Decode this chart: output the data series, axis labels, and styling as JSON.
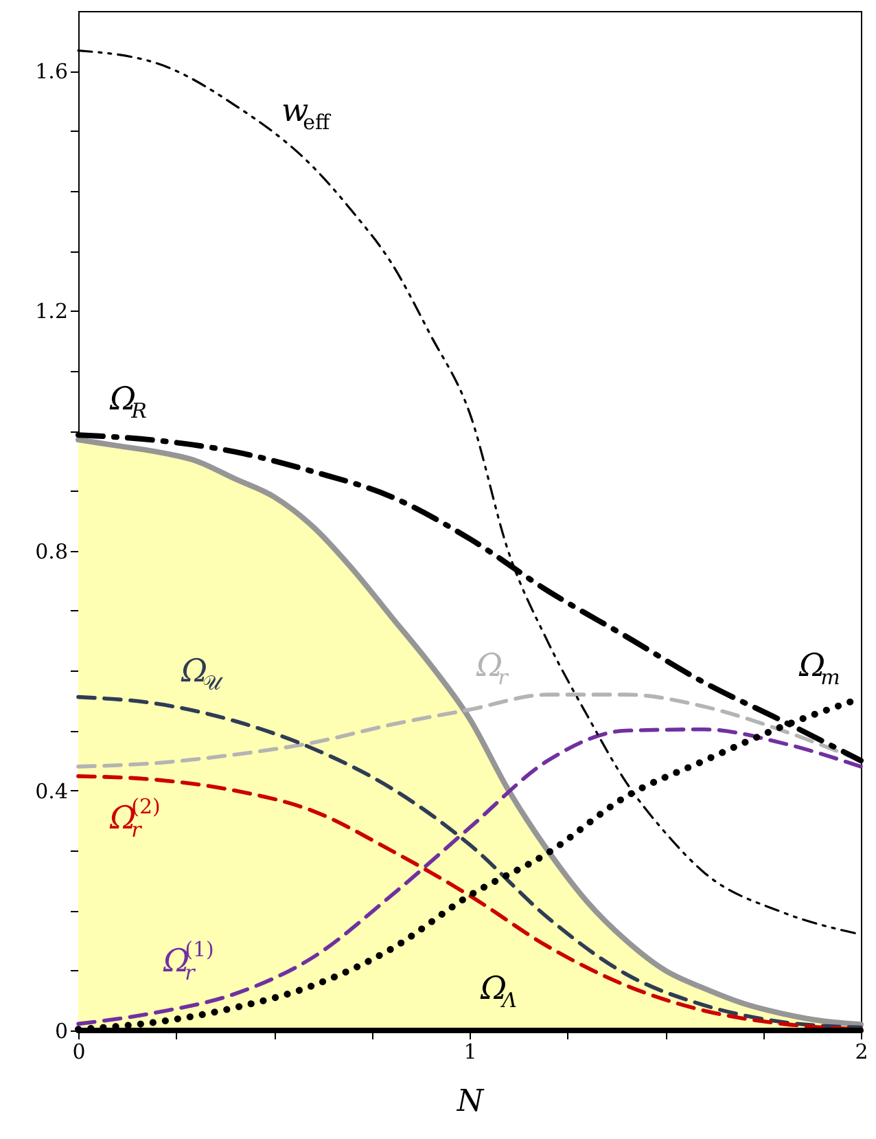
{
  "chart_data": {
    "type": "line",
    "xlabel": "N",
    "xlim": [
      0,
      2
    ],
    "ylim": [
      0,
      1.7
    ],
    "xticks": [
      0,
      {
        "value": 0.25,
        "label": null
      },
      {
        "value": 0.5,
        "label": null
      },
      {
        "value": 0.75,
        "label": null
      },
      1,
      {
        "value": 1.25,
        "label": null
      },
      {
        "value": 1.5,
        "label": null
      },
      {
        "value": 1.75,
        "label": null
      },
      2
    ],
    "yticks": [
      0,
      {
        "value": 0.1,
        "label": null
      },
      {
        "value": 0.2,
        "label": null
      },
      {
        "value": 0.3,
        "label": null
      },
      0.4,
      {
        "value": 0.5,
        "label": null
      },
      {
        "value": 0.6,
        "label": null
      },
      {
        "value": 0.7,
        "label": null
      },
      0.8,
      {
        "value": 0.9,
        "label": null
      },
      {
        "value": 1.0,
        "label": null
      },
      {
        "value": 1.1,
        "label": null
      },
      1.2,
      {
        "value": 1.3,
        "label": null
      },
      {
        "value": 1.4,
        "label": null
      },
      {
        "value": 1.5,
        "label": null
      },
      1.6
    ],
    "grid": false,
    "x": [
      0,
      0.2,
      0.4,
      0.6,
      0.8,
      1.0,
      1.2,
      1.4,
      1.6,
      1.8,
      2.0
    ],
    "series": [
      {
        "type": "line",
        "color": "#969696",
        "line_style": "solid",
        "x": [
          0,
          0.1,
          0.2,
          0.3,
          0.4,
          0.5,
          0.6,
          0.7,
          0.8,
          0.9,
          1.0,
          1.1,
          1.2,
          1.3,
          1.4,
          1.5,
          1.6,
          1.7,
          1.8,
          1.9,
          2.0
        ],
        "values": [
          0.985,
          0.975,
          0.965,
          0.95,
          0.92,
          0.89,
          0.84,
          0.77,
          0.69,
          0.61,
          0.52,
          0.4,
          0.3,
          0.215,
          0.15,
          0.1,
          0.07,
          0.045,
          0.028,
          0.016,
          0.01
        ],
        "lower": [
          0,
          0,
          0,
          0,
          0,
          0,
          0,
          0,
          0,
          0,
          0,
          0,
          0,
          0,
          0,
          0,
          0,
          0,
          0,
          0,
          0
        ],
        "upper": [
          0.985,
          0.975,
          0.965,
          0.95,
          0.92,
          0.89,
          0.84,
          0.77,
          0.69,
          0.61,
          0.52,
          0.4,
          0.3,
          0.215,
          0.15,
          0.1,
          0.07,
          0.045,
          0.028,
          0.016,
          0.01
        ]
      },
      {
        "type": "line",
        "name": "Ω$_{r}$",
        "color": "#b4b4b4",
        "line_style": "dashed",
        "values": [
          0.44,
          0.446,
          0.46,
          0.48,
          0.51,
          0.535,
          0.56,
          0.56,
          0.54,
          0.5,
          0.45
        ]
      },
      {
        "type": "line",
        "name": "Ω$_{𝒰}$",
        "color": "#2f3c55",
        "line_style": "dashed",
        "values": [
          0.556,
          0.545,
          0.516,
          0.47,
          0.404,
          0.31,
          0.188,
          0.094,
          0.042,
          0.014,
          0.005
        ]
      },
      {
        "type": "line",
        "name": "Ω$_{r}$$^{(2)}$",
        "color": "#cc0000",
        "line_style": "dashed",
        "values": [
          0.424,
          0.418,
          0.4,
          0.366,
          0.3,
          0.225,
          0.14,
          0.075,
          0.033,
          0.011,
          0.002
        ]
      },
      {
        "type": "line",
        "name": "Ω$_{r}$$^{(1)}$",
        "color": "#7030a0",
        "line_style": "dashed",
        "values": [
          0.011,
          0.03,
          0.061,
          0.122,
          0.225,
          0.338,
          0.45,
          0.5,
          0.502,
          0.479,
          0.44
        ]
      },
      {
        "type": "line",
        "name": "Ω$_{m}$",
        "color": "#000000",
        "line_style": "dotted",
        "values": [
          0.002,
          0.014,
          0.038,
          0.075,
          0.136,
          0.225,
          0.296,
          0.39,
          0.45,
          0.507,
          0.554
        ]
      },
      {
        "type": "line",
        "name": "Ω$_{R}$",
        "color": "#000000",
        "line_style": "dashdot",
        "values": [
          0.993,
          0.984,
          0.965,
          0.932,
          0.89,
          0.82,
          0.733,
          0.657,
          0.58,
          0.516,
          0.45
        ]
      },
      {
        "type": "line",
        "name": "w$_{eff}$",
        "color": "#000000",
        "line_style": "dashdotdot",
        "x": [
          0,
          0.2,
          0.4,
          0.6,
          0.7,
          0.8,
          0.9,
          1.0,
          1.1,
          1.2,
          1.3,
          1.4,
          1.5,
          1.6,
          1.8,
          2.0
        ],
        "values": [
          1.634,
          1.613,
          1.543,
          1.44,
          1.366,
          1.28,
          1.16,
          1.03,
          0.797,
          0.648,
          0.526,
          0.414,
          0.33,
          0.263,
          0.197,
          0.16
        ]
      },
      {
        "name": "Ω$_{Λ}$",
        "color": "#000000",
        "line_style": "solid",
        "values": [
          0,
          0,
          0,
          0,
          0,
          0,
          0,
          0,
          0,
          0,
          0
        ]
      }
    ]
  }
}
